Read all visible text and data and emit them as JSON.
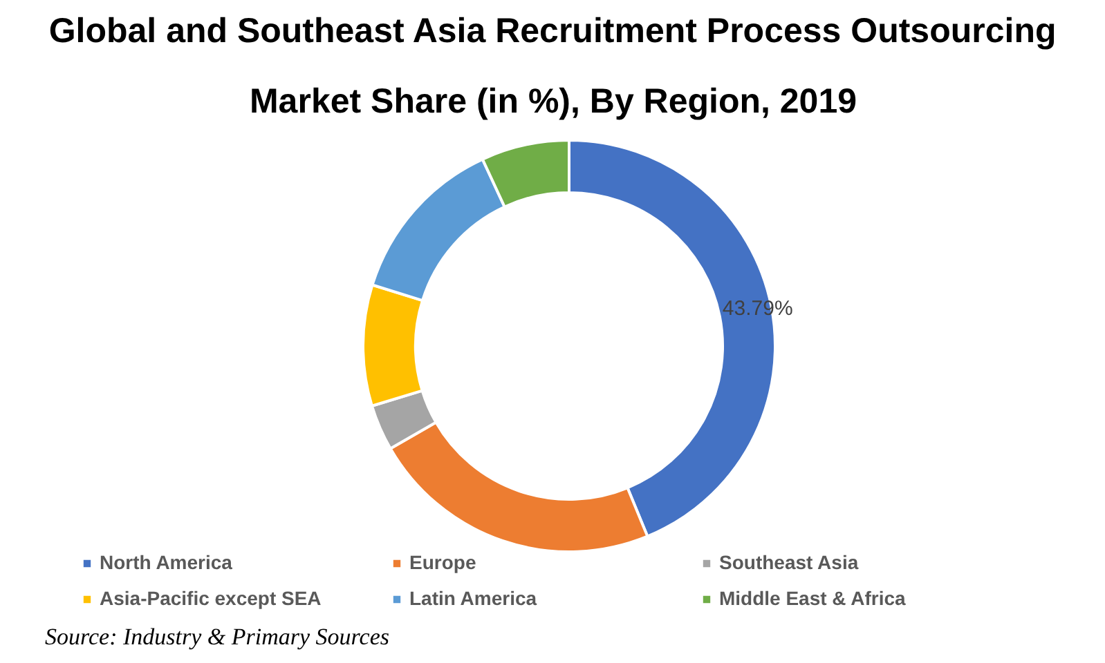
{
  "chart_data": {
    "type": "donut",
    "title": "Global and Southeast Asia Recruitment Process Outsourcing Market Share (in %), By Region, 2019",
    "categories": [
      "North America",
      "Europe",
      "Southeast Asia",
      "Asia-Pacific except SEA",
      "Latin America",
      "Middle East & Africa"
    ],
    "values": [
      43.79,
      22.91,
      3.6,
      9.5,
      13.3,
      6.9
    ],
    "colors": [
      "#4472c4",
      "#ed7d31",
      "#a5a5a5",
      "#ffc000",
      "#5b9bd5",
      "#70ad47"
    ],
    "value_labels": [
      "43.79%",
      null,
      null,
      null,
      null,
      null
    ],
    "legend": "bottom",
    "annotations": [
      "Source: Industry & Primary Sources"
    ]
  }
}
